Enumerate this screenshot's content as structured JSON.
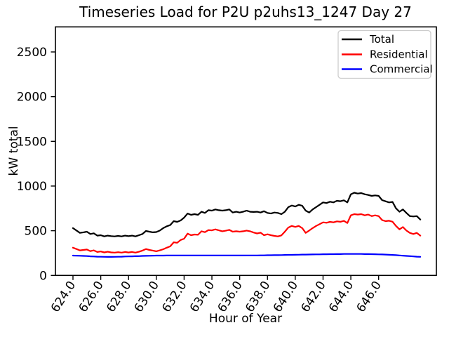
{
  "figure": {
    "title": "Timeseries Load for P2U p2uhs13_1247  Day 27"
  },
  "chart_data": {
    "type": "line",
    "title": "Timeseries Load for P2U p2uhs13_1247  Day 27",
    "xlabel": "Hour of Year",
    "ylabel": "kW total",
    "xlim": [
      622.7,
      650.2
    ],
    "ylim": [
      0,
      2780
    ],
    "grid": false,
    "legend_position": "upper right",
    "x_tick_values": [
      624,
      626,
      628,
      630,
      632,
      634,
      636,
      638,
      640,
      642,
      644,
      646
    ],
    "x_tick_labels": [
      "624.0",
      "626.0",
      "628.0",
      "630.0",
      "632.0",
      "634.0",
      "636.0",
      "638.0",
      "640.0",
      "642.0",
      "644.0",
      "646.0"
    ],
    "y_tick_values": [
      0,
      500,
      1000,
      1500,
      2000,
      2500
    ],
    "y_tick_labels": [
      "0",
      "500",
      "1000",
      "1500",
      "2000",
      "2500"
    ],
    "x": [
      624.0,
      624.25,
      624.5,
      624.75,
      625.0,
      625.25,
      625.5,
      625.75,
      626.0,
      626.25,
      626.5,
      626.75,
      627.0,
      627.25,
      627.5,
      627.75,
      628.0,
      628.25,
      628.5,
      628.75,
      629.0,
      629.25,
      629.5,
      629.75,
      630.0,
      630.25,
      630.5,
      630.75,
      631.0,
      631.25,
      631.5,
      631.75,
      632.0,
      632.25,
      632.5,
      632.75,
      633.0,
      633.25,
      633.5,
      633.75,
      634.0,
      634.25,
      634.5,
      634.75,
      635.0,
      635.25,
      635.5,
      635.75,
      636.0,
      636.25,
      636.5,
      636.75,
      637.0,
      637.25,
      637.5,
      637.75,
      638.0,
      638.25,
      638.5,
      638.75,
      639.0,
      639.25,
      639.5,
      639.75,
      640.0,
      640.25,
      640.5,
      640.75,
      641.0,
      641.25,
      641.5,
      641.75,
      642.0,
      642.25,
      642.5,
      642.75,
      643.0,
      643.25,
      643.5,
      643.75,
      644.0,
      644.25,
      644.5,
      644.75,
      645.0,
      645.25,
      645.5,
      645.75,
      646.0,
      646.25,
      646.5,
      646.75,
      647.0,
      647.25,
      647.5,
      647.75,
      648.0,
      648.25,
      648.5,
      648.75,
      649.0
    ],
    "series": [
      {
        "name": "Total",
        "color": "#000000",
        "values": [
          529,
          503,
          476,
          482,
          489,
          463,
          471,
          445,
          450,
          437,
          445,
          440,
          437,
          442,
          437,
          445,
          440,
          445,
          437,
          450,
          463,
          497,
          489,
          482,
          485,
          502,
          529,
          550,
          563,
          607,
          599,
          615,
          646,
          693,
          678,
          686,
          678,
          712,
          699,
          730,
          725,
          738,
          730,
          725,
          730,
          738,
          704,
          712,
          704,
          712,
          725,
          712,
          710,
          712,
          704,
          719,
          699,
          693,
          704,
          699,
          686,
          712,
          764,
          782,
          771,
          790,
          779,
          725,
          704,
          738,
          764,
          790,
          817,
          810,
          825,
          817,
          835,
          830,
          840,
          817,
          908,
          925,
          916,
          921,
          908,
          900,
          890,
          895,
          890,
          843,
          829,
          817,
          822,
          751,
          712,
          738,
          699,
          664,
          660,
          664,
          625
        ]
      },
      {
        "name": "Residential",
        "color": "#ff0000",
        "values": [
          310,
          295,
          280,
          285,
          290,
          272,
          280,
          262,
          268,
          258,
          265,
          258,
          255,
          260,
          255,
          262,
          257,
          262,
          255,
          265,
          278,
          295,
          285,
          278,
          270,
          280,
          293,
          310,
          325,
          371,
          365,
          397,
          411,
          468,
          450,
          458,
          455,
          494,
          484,
          507,
          504,
          515,
          504,
          494,
          500,
          510,
          489,
          494,
          489,
          494,
          502,
          494,
          480,
          470,
          478,
          450,
          460,
          450,
          442,
          437,
          448,
          489,
          536,
          554,
          543,
          554,
          529,
          476,
          502,
          529,
          554,
          573,
          594,
          589,
          599,
          594,
          605,
          600,
          610,
          586,
          672,
          686,
          681,
          686,
          672,
          681,
          664,
          672,
          664,
          620,
          607,
          612,
          601,
          554,
          515,
          541,
          502,
          476,
          463,
          476,
          445
        ]
      },
      {
        "name": "Commercial",
        "color": "#0000ff",
        "values": [
          222,
          221,
          220,
          218,
          217,
          214,
          212,
          210,
          209,
          208,
          207,
          207,
          208,
          209,
          210,
          212,
          213,
          214,
          215,
          216,
          218,
          219,
          220,
          221,
          222,
          222,
          222,
          223,
          223,
          223,
          223,
          223,
          223,
          223,
          223,
          223,
          223,
          223,
          223,
          223,
          223,
          223,
          223,
          223,
          223,
          223,
          223,
          223,
          223,
          223,
          224,
          224,
          224,
          224,
          225,
          225,
          226,
          226,
          227,
          227,
          228,
          229,
          230,
          230,
          231,
          232,
          233,
          233,
          234,
          235,
          236,
          236,
          237,
          237,
          238,
          238,
          239,
          239,
          240,
          240,
          240,
          240,
          240,
          240,
          239,
          239,
          238,
          237,
          236,
          235,
          233,
          231,
          229,
          227,
          224,
          221,
          218,
          216,
          213,
          210,
          208
        ]
      }
    ]
  }
}
